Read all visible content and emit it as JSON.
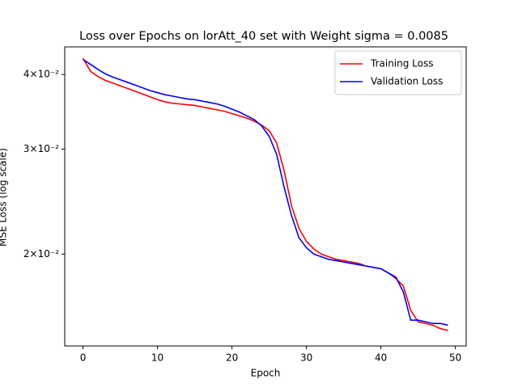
{
  "chart_data": {
    "type": "line",
    "title": "Loss over Epochs on lorAtt_40 set with Weight sigma = 0.0085",
    "x_label": "Epoch",
    "y_label": "MSE Loss (log scale)",
    "x": [
      0,
      1,
      2,
      3,
      4,
      5,
      6,
      7,
      8,
      9,
      10,
      11,
      12,
      13,
      14,
      15,
      16,
      17,
      18,
      19,
      20,
      21,
      22,
      23,
      24,
      25,
      26,
      27,
      28,
      29,
      30,
      31,
      32,
      33,
      34,
      35,
      36,
      37,
      38,
      39,
      40,
      41,
      42,
      43,
      44,
      45,
      46,
      47,
      48,
      49
    ],
    "series": [
      {
        "name": "Training Loss",
        "color": "#ff0000",
        "values": [
          0.0426,
          0.0405,
          0.0397,
          0.0391,
          0.0387,
          0.0383,
          0.0379,
          0.0375,
          0.0371,
          0.0367,
          0.0363,
          0.036,
          0.0358,
          0.0357,
          0.0356,
          0.0355,
          0.0353,
          0.0351,
          0.0349,
          0.0347,
          0.0344,
          0.0341,
          0.0338,
          0.0334,
          0.0329,
          0.0322,
          0.0307,
          0.0276,
          0.0241,
          0.0221,
          0.021,
          0.0204,
          0.02,
          0.0198,
          0.0196,
          0.0195,
          0.0194,
          0.0193,
          0.0191,
          0.019,
          0.0189,
          0.0186,
          0.0182,
          0.0177,
          0.0161,
          0.0154,
          0.0153,
          0.0152,
          0.015,
          0.0149
        ]
      },
      {
        "name": "Validation Loss",
        "color": "#0000ff",
        "values": [
          0.0424,
          0.0416,
          0.0408,
          0.0401,
          0.0396,
          0.0392,
          0.0388,
          0.0384,
          0.038,
          0.0376,
          0.0373,
          0.037,
          0.0368,
          0.0366,
          0.0364,
          0.0363,
          0.0361,
          0.0359,
          0.0357,
          0.0354,
          0.035,
          0.0346,
          0.0341,
          0.0336,
          0.0328,
          0.0315,
          0.0294,
          0.0259,
          0.0232,
          0.0213,
          0.0205,
          0.02,
          0.0198,
          0.0196,
          0.0195,
          0.0194,
          0.0193,
          0.0192,
          0.0191,
          0.019,
          0.0189,
          0.0186,
          0.0183,
          0.0173,
          0.0155,
          0.0155,
          0.0154,
          0.0153,
          0.0153,
          0.0152
        ]
      }
    ],
    "xlim": [
      -2.45,
      51.45
    ],
    "xticks": [
      0,
      10,
      20,
      30,
      40,
      50
    ],
    "ylim": [
      0.01403,
      0.0445
    ],
    "y_scale": "log",
    "yticks": [
      {
        "value": 0.02,
        "label": "2×10⁻²"
      },
      {
        "value": 0.03,
        "label": "3×10⁻²"
      },
      {
        "value": 0.04,
        "label": "4×10⁻²"
      }
    ],
    "legend": "upper right"
  }
}
